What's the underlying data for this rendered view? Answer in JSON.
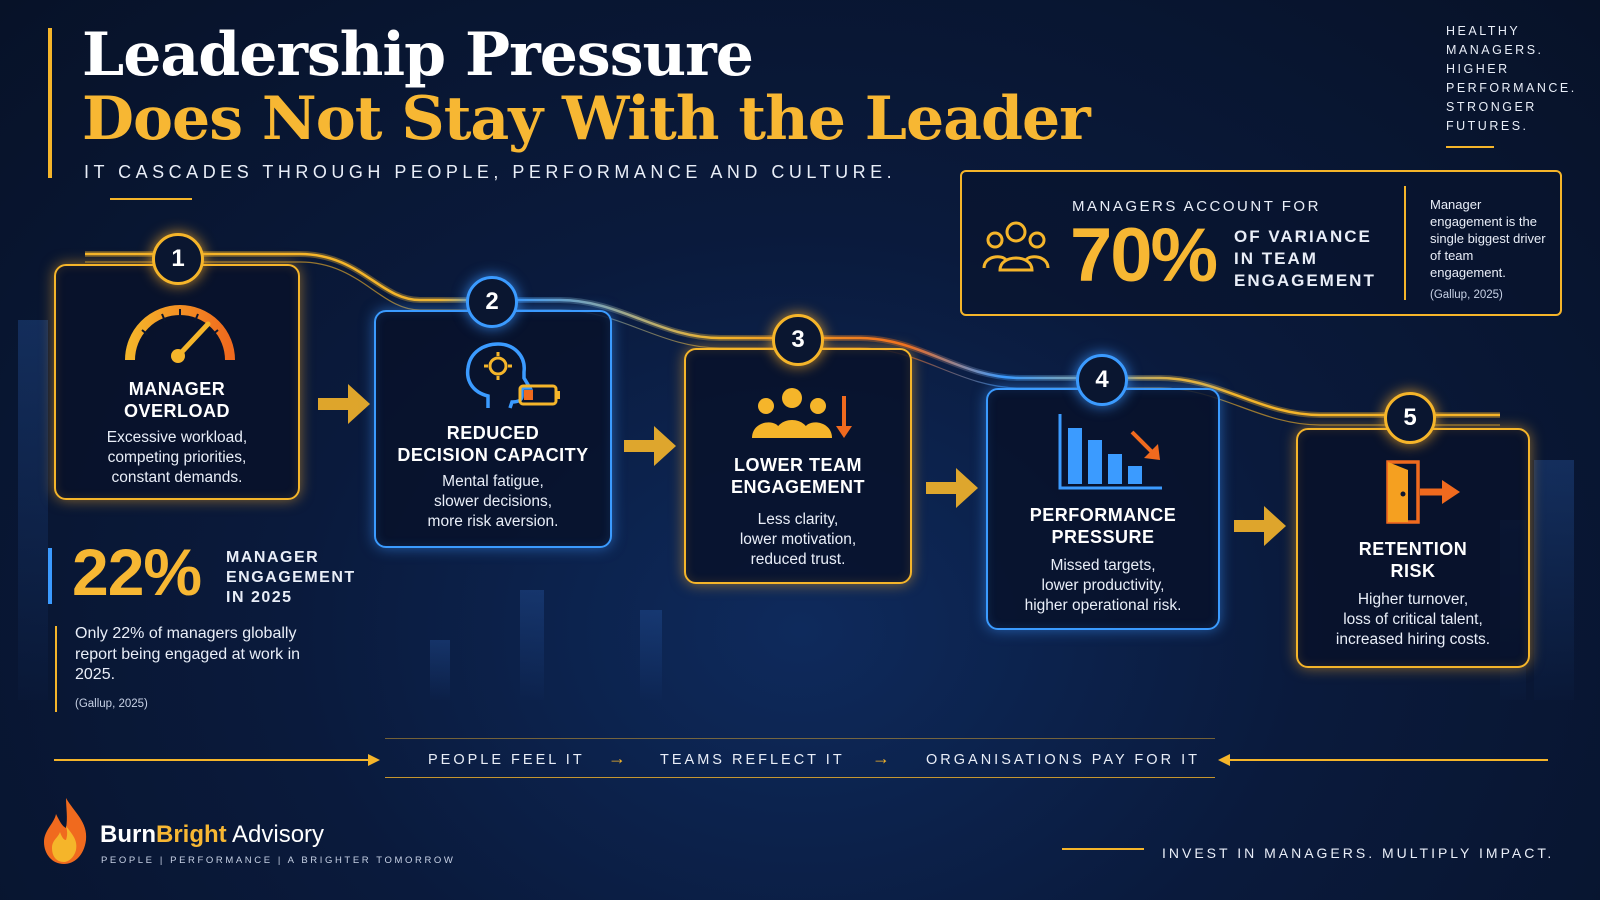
{
  "header": {
    "title_line1": "Leadership Pressure",
    "title_line2": "Does Not Stay With the Leader",
    "subtitle": "IT CASCADES THROUGH PEOPLE, PERFORMANCE AND CULTURE."
  },
  "tagline": {
    "line1": "HEALTHY",
    "line2": "MANAGERS.",
    "line3": "HIGHER",
    "line4": "PERFORMANCE.",
    "line5": "STRONGER",
    "line6": "FUTURES."
  },
  "stat_70": {
    "label": "MANAGERS ACCOUNT FOR",
    "value": "70%",
    "desc_line1": "OF VARIANCE",
    "desc_line2": "IN TEAM",
    "desc_line3": "ENGAGEMENT",
    "note": "Manager engagement is the single biggest driver of team engagement.",
    "citation": "(Gallup, 2025)",
    "icon": "people-group-icon"
  },
  "steps": [
    {
      "number": "1",
      "title_line1": "MANAGER",
      "title_line2": "OVERLOAD",
      "desc_line1": "Excessive workload,",
      "desc_line2": "competing priorities,",
      "desc_line3": "constant demands.",
      "icon": "gauge-icon"
    },
    {
      "number": "2",
      "title_line1": "REDUCED",
      "title_line2": "DECISION CAPACITY",
      "desc_line1": "Mental fatigue,",
      "desc_line2": "slower decisions,",
      "desc_line3": "more risk aversion.",
      "icon": "head-low-battery-icon"
    },
    {
      "number": "3",
      "title_line1": "LOWER TEAM",
      "title_line2": "ENGAGEMENT",
      "desc_line1": "Less clarity,",
      "desc_line2": "lower motivation,",
      "desc_line3": "reduced trust.",
      "icon": "team-down-arrow-icon"
    },
    {
      "number": "4",
      "title_line1": "PERFORMANCE",
      "title_line2": "PRESSURE",
      "desc_line1": "Missed targets,",
      "desc_line2": "lower productivity,",
      "desc_line3": "higher operational risk.",
      "icon": "declining-bar-chart-icon"
    },
    {
      "number": "5",
      "title_line1": "RETENTION",
      "title_line2": "RISK",
      "desc_line1": "Higher turnover,",
      "desc_line2": "loss of critical talent,",
      "desc_line3": "increased hiring costs.",
      "icon": "exit-door-icon"
    }
  ],
  "stat_22": {
    "value": "22%",
    "label_line1": "MANAGER",
    "label_line2": "ENGAGEMENT",
    "label_line3": "IN 2025",
    "text": "Only 22% of managers globally report being engaged at work in 2025.",
    "citation": "(Gallup, 2025)"
  },
  "cascade": {
    "item1": "PEOPLE FEEL IT",
    "item2": "TEAMS REFLECT IT",
    "item3": "ORGANISATIONS PAY FOR IT"
  },
  "footer": {
    "brand_part1": "Burn",
    "brand_part2": "Bright",
    "brand_part3": " Advisory",
    "brand_tagline": "PEOPLE | PERFORMANCE | A BRIGHTER TOMORROW",
    "slogan": "INVEST IN MANAGERS. MULTIPLY IMPACT."
  },
  "colors": {
    "background": "#0a1a3c",
    "accent_gold": "#f5b52a",
    "accent_blue": "#3b9bff",
    "accent_orange": "#f06a1e"
  }
}
